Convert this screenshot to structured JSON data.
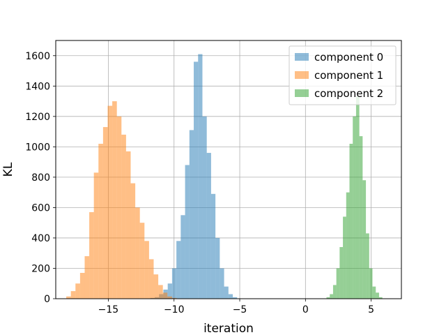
{
  "chart_data": {
    "type": "histogram",
    "title": "",
    "xlabel": "iteration",
    "ylabel": "KL",
    "xlim": [
      -19,
      7.3
    ],
    "ylim": [
      0,
      1700
    ],
    "x_ticks": [
      -15,
      -10,
      -5,
      0,
      5
    ],
    "x_tick_labels": [
      "−15",
      "−10",
      "−5",
      "0",
      "5"
    ],
    "y_ticks": [
      0,
      200,
      400,
      600,
      800,
      1000,
      1200,
      1400,
      1600
    ],
    "y_tick_labels": [
      "0",
      "200",
      "400",
      "600",
      "800",
      "1000",
      "1200",
      "1400",
      "1600"
    ],
    "grid": true,
    "legend_position": "top-right",
    "series": [
      {
        "name": "component 0",
        "color": "#1f77b4",
        "alpha": 0.5,
        "bin_edges": [
          -11.8,
          -11.47,
          -11.14,
          -10.81,
          -10.48,
          -10.15,
          -9.82,
          -9.49,
          -9.16,
          -8.83,
          -8.5,
          -8.17,
          -7.84,
          -7.51,
          -7.18,
          -6.85,
          -6.52,
          -6.19,
          -5.86,
          -5.53,
          -5.2
        ],
        "values": [
          5,
          10,
          30,
          60,
          100,
          200,
          380,
          550,
          880,
          1110,
          1560,
          1610,
          1200,
          960,
          690,
          400,
          200,
          80,
          30,
          10
        ]
      },
      {
        "name": "component 1",
        "color": "#ff7f0e",
        "alpha": 0.5,
        "bin_edges": [
          -18.2,
          -17.85,
          -17.5,
          -17.15,
          -16.8,
          -16.45,
          -16.1,
          -15.75,
          -15.4,
          -15.05,
          -14.7,
          -14.35,
          -14.0,
          -13.65,
          -13.3,
          -12.95,
          -12.6,
          -12.25,
          -11.9,
          -11.55,
          -11.2,
          -10.85,
          -10.5,
          -10.15,
          -9.8
        ],
        "values": [
          15,
          50,
          100,
          170,
          280,
          570,
          830,
          1020,
          1130,
          1270,
          1300,
          1200,
          1080,
          970,
          760,
          600,
          500,
          380,
          260,
          160,
          90,
          40,
          15,
          5
        ]
      },
      {
        "name": "component 2",
        "color": "#2ca02c",
        "alpha": 0.5,
        "bin_edges": [
          1.6,
          1.85,
          2.1,
          2.35,
          2.6,
          2.85,
          3.1,
          3.35,
          3.6,
          3.85,
          4.1,
          4.35,
          4.6,
          4.85,
          5.1,
          5.35,
          5.6,
          5.85
        ],
        "values": [
          10,
          30,
          90,
          200,
          340,
          540,
          700,
          1020,
          1200,
          1330,
          1070,
          780,
          430,
          200,
          80,
          40,
          10
        ]
      }
    ]
  }
}
